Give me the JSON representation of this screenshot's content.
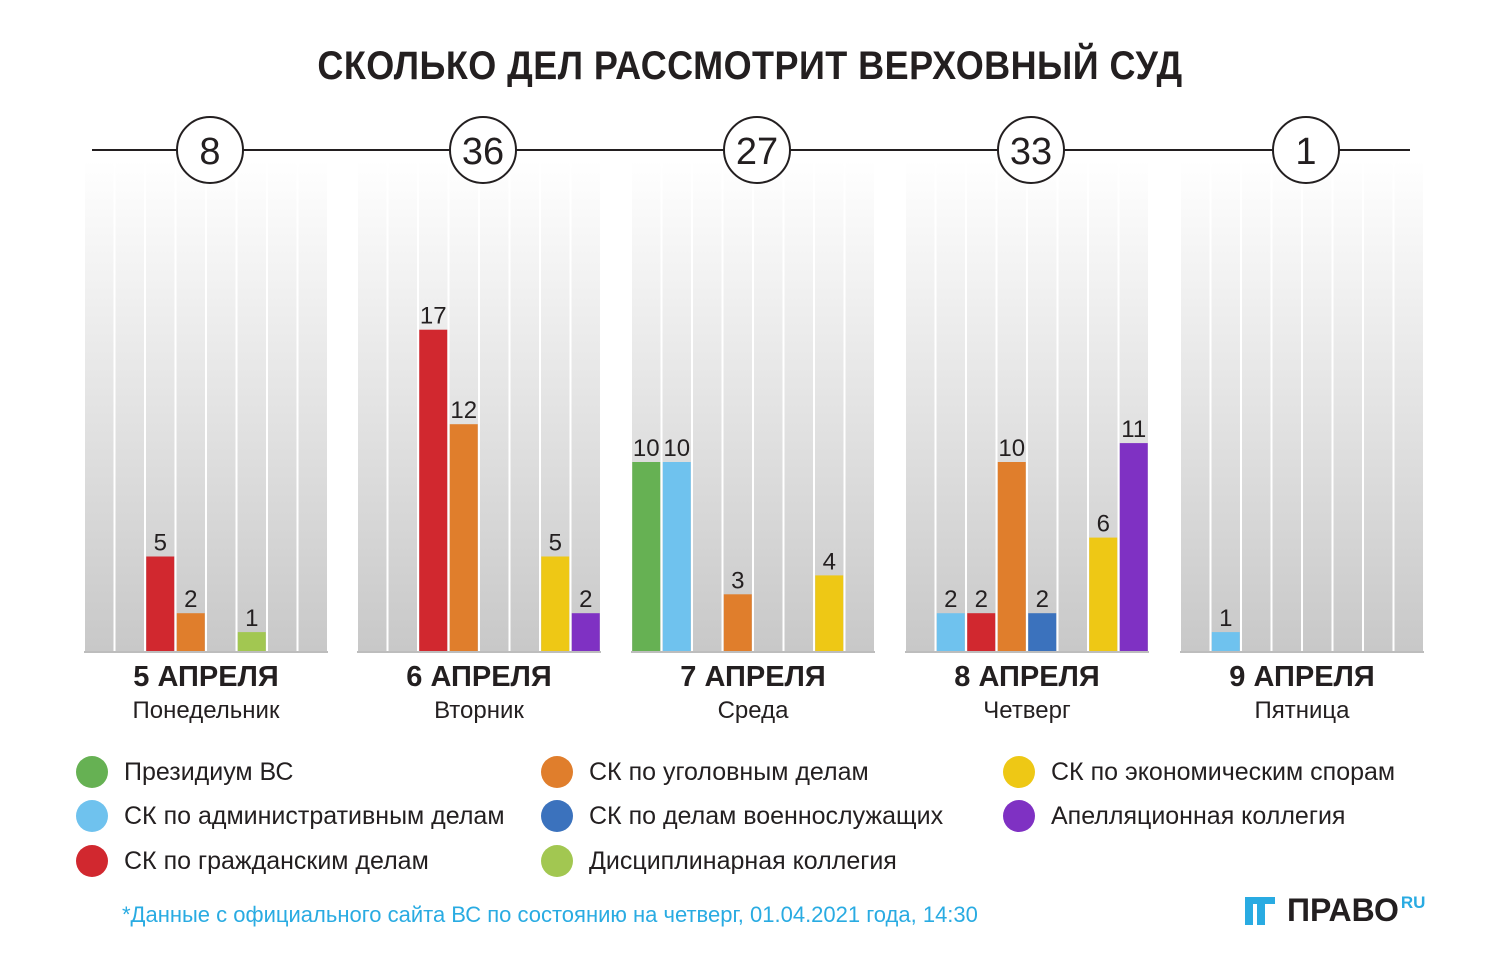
{
  "title": "СКОЛЬКО ДЕЛ РАССМОТРИТ ВЕРХОВНЫЙ СУД",
  "colors": {
    "series": [
      "#66b153",
      "#6fc2ee",
      "#d1282f",
      "#e07e2c",
      "#3b72bd",
      "#a2c751",
      "#eec815",
      "#7f31c3"
    ],
    "text": "#231f20",
    "accent": "#29abe2"
  },
  "chart_data": {
    "type": "bar",
    "title": "СКОЛЬКО ДЕЛ РАССМОТРИТ ВЕРХОВНЫЙ СУД",
    "ylim": [
      0,
      25
    ],
    "series": [
      "Президиум ВС",
      "СК по административным делам",
      "СК по гражданским делам",
      "СК по уголовным делам",
      "СК по делам военнослужащих",
      "Дисциплинарная коллегия",
      "СК по экономическим спорам",
      "Апелляционная коллегия"
    ],
    "days": [
      {
        "date": "5 АПРЕЛЯ",
        "weekday": "Понедельник",
        "total": "8",
        "values": [
          0,
          0,
          5,
          2,
          0,
          1,
          0,
          0
        ]
      },
      {
        "date": "6 АПРЕЛЯ",
        "weekday": "Вторник",
        "total": "36",
        "values": [
          0,
          0,
          17,
          12,
          0,
          0,
          5,
          2
        ]
      },
      {
        "date": "7 АПРЕЛЯ",
        "weekday": "Среда",
        "total": "27",
        "values": [
          10,
          10,
          0,
          3,
          0,
          0,
          4,
          0
        ]
      },
      {
        "date": "8 АПРЕЛЯ",
        "weekday": "Четверг",
        "total": "33",
        "values": [
          0,
          2,
          2,
          10,
          2,
          0,
          6,
          11
        ]
      },
      {
        "date": "9 АПРЕЛЯ",
        "weekday": "Пятница",
        "total": "1",
        "values": [
          0,
          1,
          0,
          0,
          0,
          0,
          0,
          0
        ]
      }
    ]
  },
  "legend": [
    {
      "label": "Президиум ВС",
      "color": "#66b153"
    },
    {
      "label": "СК по административным делам",
      "color": "#6fc2ee"
    },
    {
      "label": "СК по гражданским делам",
      "color": "#d1282f"
    },
    {
      "label": "СК по уголовным делам",
      "color": "#e07e2c"
    },
    {
      "label": "СК по делам военнослужащих",
      "color": "#3b72bd"
    },
    {
      "label": "Дисциплинарная коллегия",
      "color": "#a2c751"
    },
    {
      "label": "СК по экономическим спорам",
      "color": "#eec815"
    },
    {
      "label": "Апелляционная коллегия",
      "color": "#7f31c3"
    }
  ],
  "footnote": "*Данные с официального сайта ВС по состоянию на четверг, 01.04.2021 года, 14:30",
  "brand": {
    "name": "ПРАВО",
    "suffix": "RU"
  }
}
